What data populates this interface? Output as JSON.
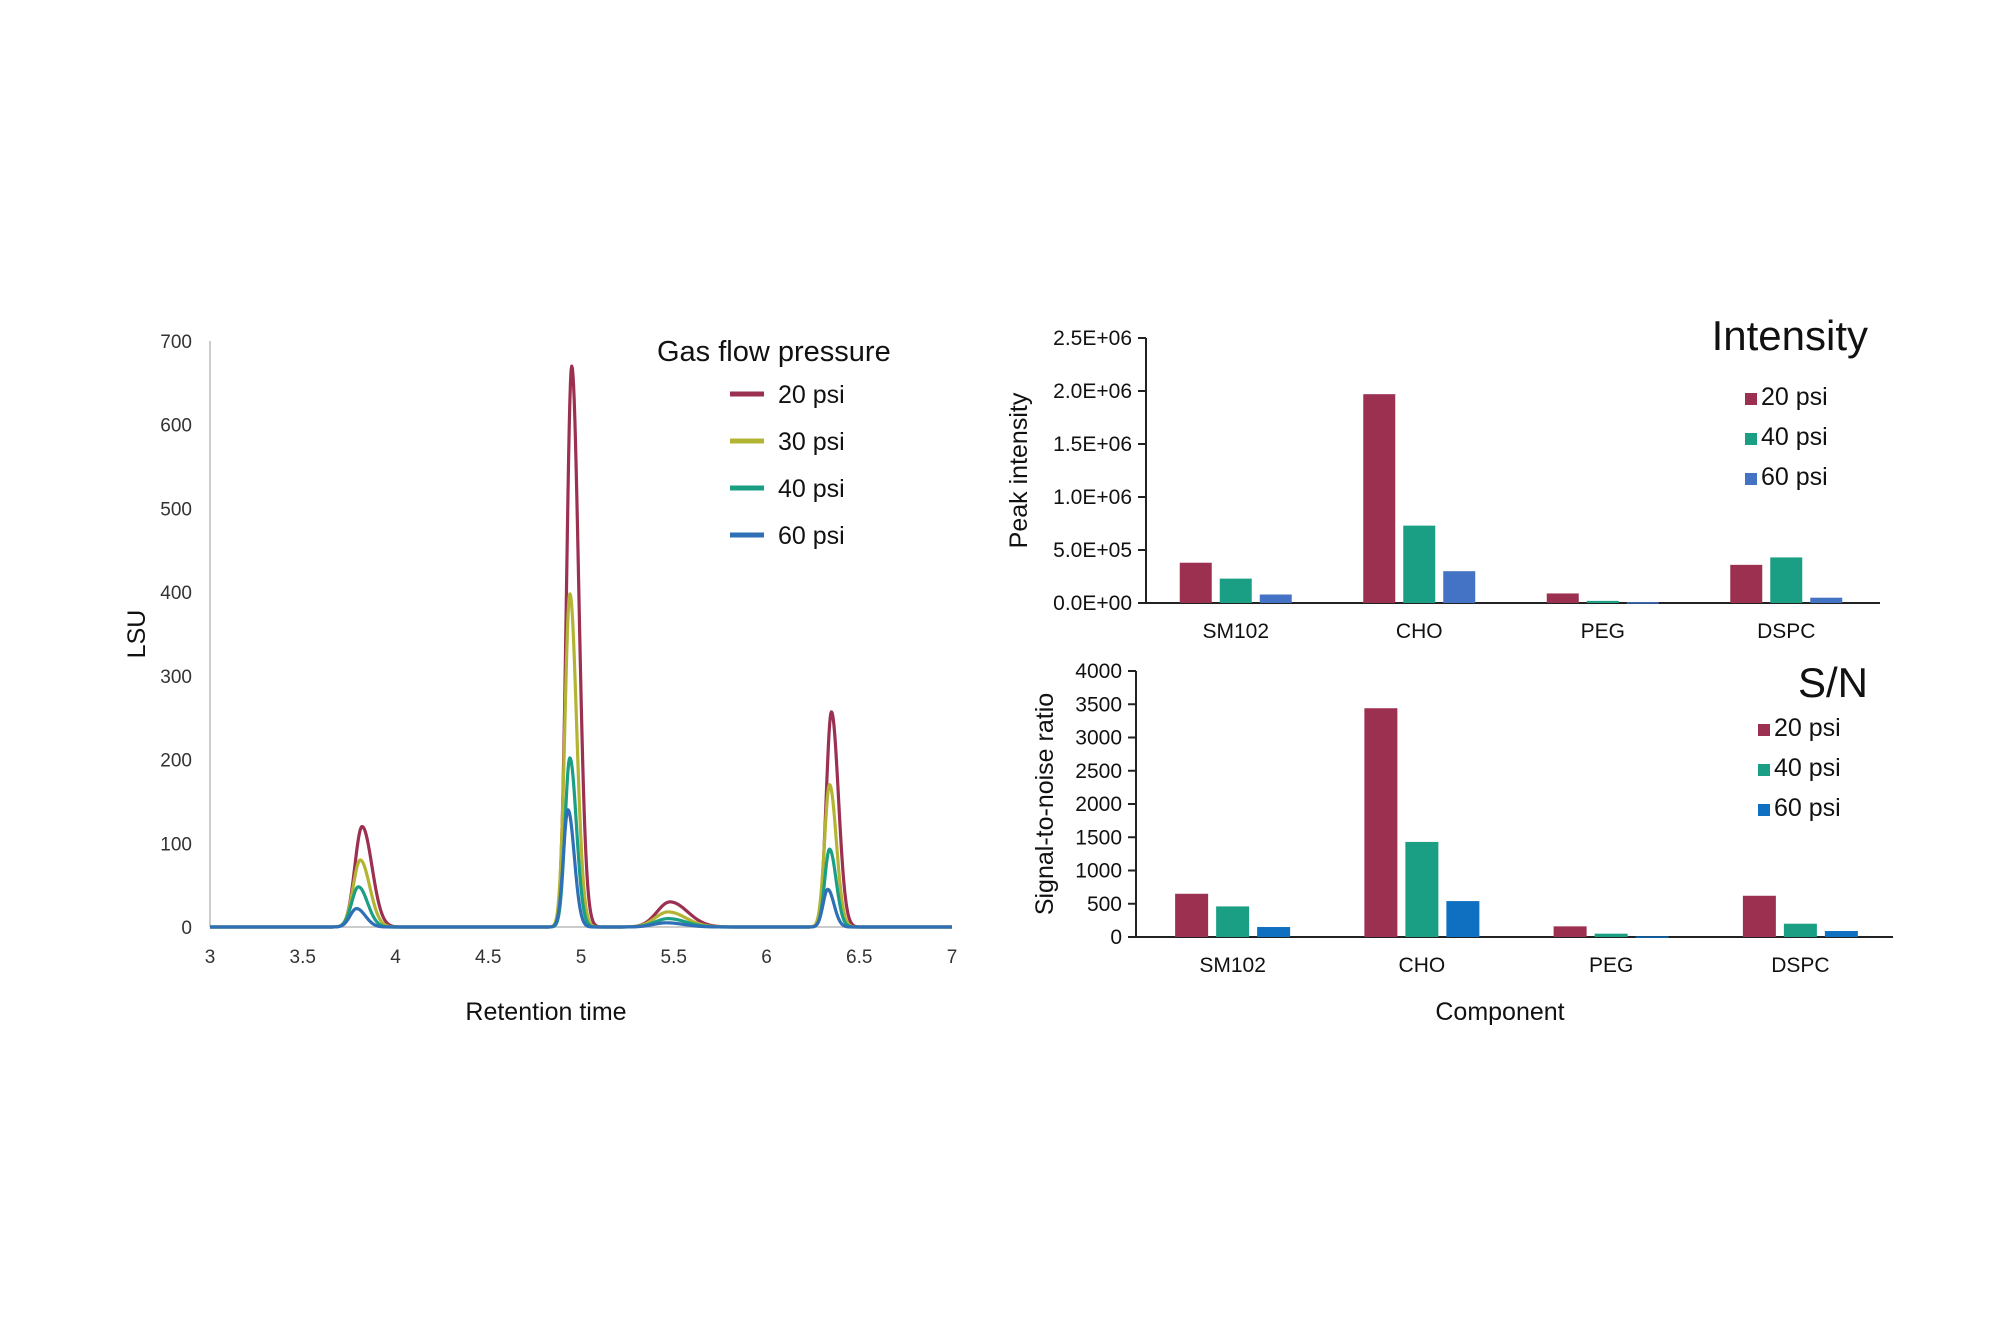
{
  "chart_data": [
    {
      "type": "line",
      "title": "",
      "xlabel": "Retention time",
      "ylabel": "LSU",
      "xlim": [
        3,
        7
      ],
      "ylim": [
        0,
        700
      ],
      "xticks": [
        "3",
        "3.5",
        "4",
        "4.5",
        "5",
        "5.5",
        "6",
        "6.5",
        "7"
      ],
      "yticks": [
        "0",
        "100",
        "200",
        "300",
        "400",
        "500",
        "600",
        "700"
      ],
      "legend_title": "Gas flow pressure",
      "legend_placement": "top-right",
      "grid": false,
      "series": [
        {
          "name": "20 psi",
          "color": "#9b3050",
          "peaks": [
            {
              "x": 3.82,
              "y": 120
            },
            {
              "x": 4.95,
              "y": 670
            },
            {
              "x": 5.48,
              "y": 30
            },
            {
              "x": 6.35,
              "y": 257
            }
          ]
        },
        {
          "name": "30 psi",
          "color": "#b4b434",
          "peaks": [
            {
              "x": 3.81,
              "y": 80
            },
            {
              "x": 4.94,
              "y": 398
            },
            {
              "x": 5.47,
              "y": 18
            },
            {
              "x": 6.34,
              "y": 170
            }
          ]
        },
        {
          "name": "40 psi",
          "color": "#1a9e84",
          "peaks": [
            {
              "x": 3.8,
              "y": 48
            },
            {
              "x": 4.94,
              "y": 202
            },
            {
              "x": 5.47,
              "y": 10
            },
            {
              "x": 6.34,
              "y": 93
            }
          ]
        },
        {
          "name": "60 psi",
          "color": "#2f6fb5",
          "peaks": [
            {
              "x": 3.79,
              "y": 22
            },
            {
              "x": 4.93,
              "y": 140
            },
            {
              "x": 5.46,
              "y": 5
            },
            {
              "x": 6.33,
              "y": 45
            }
          ]
        }
      ]
    },
    {
      "type": "bar",
      "title": "Intensity",
      "xlabel": "",
      "ylabel": "Peak intensity",
      "ylim": [
        0,
        2500000
      ],
      "yticks": [
        "0.0E+00",
        "5.0E+05",
        "1.0E+06",
        "1.5E+06",
        "2.0E+06",
        "2.5E+06"
      ],
      "categories": [
        "SM102",
        "CHO",
        "PEG",
        "DSPC"
      ],
      "legend_placement": "top-right",
      "grid": false,
      "series": [
        {
          "name": "20 psi",
          "color": "#9b3050",
          "values": [
            380000,
            1970000,
            90000,
            360000
          ]
        },
        {
          "name": "40 psi",
          "color": "#1a9e84",
          "values": [
            230000,
            730000,
            20000,
            430000
          ]
        },
        {
          "name": "60 psi",
          "color": "#4472c4",
          "values": [
            80000,
            300000,
            8000,
            50000
          ]
        }
      ]
    },
    {
      "type": "bar",
      "title": "S/N",
      "xlabel": "Component",
      "ylabel": "Signal-to-noise ratio",
      "ylim": [
        0,
        4000
      ],
      "yticks": [
        "0",
        "500",
        "1000",
        "1500",
        "2000",
        "2500",
        "3000",
        "3500",
        "4000"
      ],
      "categories": [
        "SM102",
        "CHO",
        "PEG",
        "DSPC"
      ],
      "legend_placement": "top-right",
      "grid": false,
      "series": [
        {
          "name": "20 psi",
          "color": "#9b3050",
          "values": [
            650,
            3440,
            160,
            620
          ]
        },
        {
          "name": "40 psi",
          "color": "#1a9e84",
          "values": [
            460,
            1430,
            50,
            200
          ]
        },
        {
          "name": "60 psi",
          "color": "#0f6fc0",
          "values": [
            150,
            540,
            10,
            90
          ]
        }
      ]
    }
  ]
}
